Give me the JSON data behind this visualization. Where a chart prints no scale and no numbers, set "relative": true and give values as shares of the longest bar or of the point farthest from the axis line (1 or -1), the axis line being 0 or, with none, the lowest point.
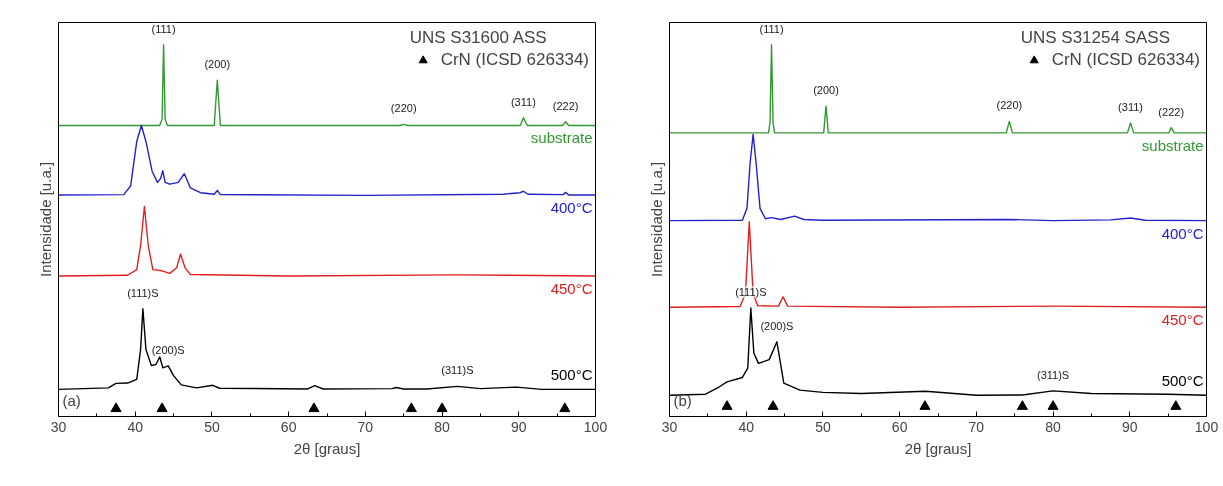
{
  "chart_data": [
    {
      "type": "line",
      "relative": true,
      "xlabel": "2θ [graus]",
      "ylabel": "Intensidade [u.a.]",
      "legend_title": "UNS S31600 ASS",
      "legend": "top right",
      "grid": false,
      "xlim": [
        30,
        100
      ],
      "xticks": [
        30,
        40,
        50,
        60,
        70,
        80,
        90,
        100
      ],
      "series": [
        {
          "name": "substrate",
          "color": "#339933",
          "x": [
            30,
            43.2,
            43.5,
            43.7,
            43.9,
            44.2,
            50.3,
            50.7,
            51.1,
            74.5,
            75,
            75.5,
            90.2,
            90.6,
            91.1,
            95.7,
            96.1,
            96.5,
            100
          ],
          "values": [
            0.783,
            0.783,
            0.8,
            1.0,
            0.8,
            0.783,
            0.783,
            0.905,
            0.783,
            0.783,
            0.786,
            0.783,
            0.783,
            0.804,
            0.783,
            0.783,
            0.793,
            0.783,
            0.783
          ]
        },
        {
          "name": "400°C",
          "color": "#2222cc",
          "x": [
            30,
            38.5,
            39.4,
            40.2,
            40.8,
            41.4,
            42.2,
            42.9,
            43.3,
            43.6,
            43.9,
            44.5,
            45.6,
            46.4,
            47.2,
            48.5,
            50.3,
            50.7,
            51.1,
            70,
            88,
            90.2,
            90.6,
            91.2,
            95.8,
            96.1,
            96.5,
            100
          ],
          "values": [
            0.596,
            0.597,
            0.62,
            0.74,
            0.783,
            0.74,
            0.66,
            0.63,
            0.64,
            0.661,
            0.63,
            0.625,
            0.63,
            0.653,
            0.615,
            0.602,
            0.598,
            0.608,
            0.597,
            0.595,
            0.598,
            0.602,
            0.606,
            0.598,
            0.597,
            0.603,
            0.596,
            0.596
          ]
        },
        {
          "name": "450°C",
          "color": "#e02020",
          "x": [
            30,
            39,
            40.2,
            40.7,
            41.2,
            41.7,
            42.3,
            43.5,
            44.5,
            45.4,
            45.9,
            46.5,
            47.2,
            60,
            82,
            100
          ],
          "values": [
            0.378,
            0.38,
            0.395,
            0.46,
            0.565,
            0.46,
            0.395,
            0.392,
            0.385,
            0.4,
            0.437,
            0.4,
            0.382,
            0.378,
            0.381,
            0.378
          ]
        },
        {
          "name": "500°C",
          "color": "#000000",
          "x": [
            30,
            36.5,
            37.5,
            39,
            40.2,
            40.7,
            41.0,
            41.4,
            42.1,
            42.7,
            43.2,
            43.6,
            44.3,
            45,
            46,
            48,
            50.1,
            51,
            62.5,
            63.4,
            64.5,
            73.5,
            74,
            75,
            78,
            82,
            85,
            89.7,
            93,
            100
          ],
          "values": [
            0.073,
            0.077,
            0.089,
            0.09,
            0.1,
            0.18,
            0.29,
            0.18,
            0.137,
            0.14,
            0.16,
            0.131,
            0.136,
            0.11,
            0.085,
            0.077,
            0.084,
            0.076,
            0.074,
            0.083,
            0.074,
            0.075,
            0.078,
            0.074,
            0.074,
            0.081,
            0.075,
            0.079,
            0.073,
            0.073
          ]
        },
        {
          "name": "CrN (ICSD 626334)",
          "type": "scatter",
          "marker": "triangle",
          "color": "#000000",
          "x": [
            37.5,
            43.5,
            63.3,
            76,
            80,
            96
          ],
          "values": [
            0.021,
            0.021,
            0.021,
            0.021,
            0.021,
            0.021
          ]
        }
      ],
      "annotations": [
        {
          "text": "(111)",
          "x": 43.7,
          "y": 1.0
        },
        {
          "text": "(200)",
          "x": 50.7,
          "y": 0.905
        },
        {
          "text": "(220)",
          "x": 75,
          "y": 0.786
        },
        {
          "text": "(311)",
          "x": 90.6,
          "y": 0.804
        },
        {
          "text": "(222)",
          "x": 96.1,
          "y": 0.793
        },
        {
          "text": "(111)S",
          "x": 41.0,
          "y": 0.29
        },
        {
          "text": "(200)S",
          "x": 44.3,
          "y": 0.136
        },
        {
          "text": "(311)S",
          "x": 82,
          "y": 0.081
        },
        "(a)"
      ]
    },
    {
      "type": "line",
      "relative": true,
      "xlabel": "2θ [graus]",
      "ylabel": "Intensidade [u.a.]",
      "legend_title": "UNS S31254 SASS",
      "legend": "top right",
      "grid": false,
      "xlim": [
        30,
        100
      ],
      "xticks": [
        30,
        40,
        50,
        60,
        70,
        80,
        90,
        100
      ],
      "series": [
        {
          "name": "substrate",
          "color": "#339933",
          "x": [
            30,
            42.9,
            43.1,
            43.3,
            43.5,
            43.7,
            50.1,
            50.4,
            50.7,
            73.9,
            74.3,
            74.7,
            89.7,
            90.1,
            90.5,
            95.1,
            95.4,
            95.8,
            100
          ],
          "values": [
            0.763,
            0.763,
            0.79,
            1.0,
            0.79,
            0.763,
            0.763,
            0.835,
            0.763,
            0.763,
            0.794,
            0.763,
            0.763,
            0.79,
            0.763,
            0.763,
            0.777,
            0.763,
            0.763
          ]
        },
        {
          "name": "400°C",
          "color": "#2222cc",
          "x": [
            30,
            39.5,
            40.1,
            40.5,
            40.9,
            41.3,
            41.8,
            42.5,
            43.3,
            44.5,
            46.3,
            47.5,
            50,
            74.3,
            80,
            87.5,
            90.1,
            92,
            100
          ],
          "values": [
            0.527,
            0.528,
            0.56,
            0.68,
            0.759,
            0.68,
            0.56,
            0.532,
            0.535,
            0.53,
            0.539,
            0.53,
            0.528,
            0.53,
            0.527,
            0.529,
            0.534,
            0.528,
            0.527
          ]
        },
        {
          "name": "450°C",
          "color": "#e02020",
          "x": [
            30,
            39.2,
            39.9,
            40.4,
            40.9,
            41.5,
            44.2,
            44.8,
            45.4,
            60,
            80,
            100
          ],
          "values": [
            0.294,
            0.296,
            0.33,
            0.524,
            0.33,
            0.298,
            0.297,
            0.322,
            0.297,
            0.294,
            0.297,
            0.294
          ]
        },
        {
          "name": "500°C",
          "color": "#000000",
          "x": [
            30,
            34.7,
            36.5,
            37.5,
            39.5,
            40.2,
            40.6,
            41.0,
            41.6,
            43,
            44.0,
            44.9,
            47,
            50,
            55,
            63.4,
            70,
            76,
            80,
            85,
            95,
            100
          ],
          "values": [
            0.057,
            0.06,
            0.08,
            0.093,
            0.105,
            0.13,
            0.292,
            0.17,
            0.143,
            0.153,
            0.201,
            0.09,
            0.071,
            0.065,
            0.062,
            0.068,
            0.057,
            0.058,
            0.069,
            0.062,
            0.06,
            0.057
          ]
        },
        {
          "name": "CrN (ICSD 626334)",
          "type": "scatter",
          "marker": "triangle",
          "color": "#000000",
          "x": [
            37.5,
            43.5,
            63.3,
            76,
            80,
            96
          ],
          "values": [
            0.027,
            0.027,
            0.027,
            0.027,
            0.027,
            0.027
          ]
        }
      ],
      "annotations": [
        {
          "text": "(111)",
          "x": 43.3,
          "y": 1.0
        },
        {
          "text": "(200)",
          "x": 50.4,
          "y": 0.835
        },
        {
          "text": "(220)",
          "x": 74.3,
          "y": 0.794
        },
        {
          "text": "(311)",
          "x": 90.1,
          "y": 0.79
        },
        {
          "text": "(222)",
          "x": 95.4,
          "y": 0.777
        },
        {
          "text": "(111)S",
          "x": 40.6,
          "y": 0.292
        },
        {
          "text": "(200)S",
          "x": 44.0,
          "y": 0.201
        },
        {
          "text": "(311)S",
          "x": 80,
          "y": 0.069
        },
        "(b)"
      ]
    }
  ]
}
